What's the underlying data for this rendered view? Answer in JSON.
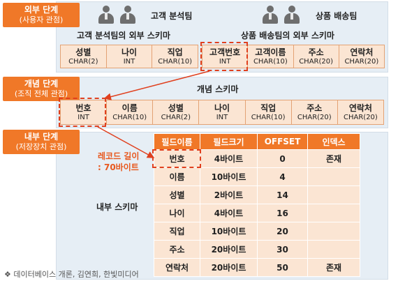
{
  "levels": {
    "external": {
      "title": "외부 단계",
      "subtitle": "(사용자 관점)"
    },
    "conceptual": {
      "title": "개념 단계",
      "subtitle": "(조직 전체 관점)"
    },
    "internal": {
      "title": "내부 단계",
      "subtitle": "(저장장치 관점)"
    }
  },
  "external": {
    "team_a": {
      "name": "고객 분석팀",
      "schema_label": "고객 분석팀의 외부 스키마"
    },
    "team_b": {
      "name": "상품 배송팀",
      "schema_label": "상품 배송팀의 외부 스키마"
    },
    "schema_a": [
      {
        "name": "성별",
        "type": "CHAR(2)"
      },
      {
        "name": "나이",
        "type": "INT"
      },
      {
        "name": "직업",
        "type": "CHAR(10)"
      }
    ],
    "schema_b": [
      {
        "name": "고객번호",
        "type": "INT"
      },
      {
        "name": "고객이름",
        "type": "CHAR(10)"
      },
      {
        "name": "주소",
        "type": "CHAR(20)"
      },
      {
        "name": "연락처",
        "type": "CHAR(20)"
      }
    ]
  },
  "conceptual": {
    "schema_label": "개념 스키마",
    "fields": [
      {
        "name": "번호",
        "type": "INT"
      },
      {
        "name": "이름",
        "type": "CHAR(10)"
      },
      {
        "name": "성별",
        "type": "CHAR(2)"
      },
      {
        "name": "나이",
        "type": "INT"
      },
      {
        "name": "직업",
        "type": "CHAR(10)"
      },
      {
        "name": "주소",
        "type": "CHAR(20)"
      },
      {
        "name": "연락처",
        "type": "CHAR(20)"
      }
    ]
  },
  "internal": {
    "schema_label": "내부 스키마",
    "record_note": {
      "line1": "레코드 길이",
      "line2": ": 70바이트"
    },
    "headers": [
      "필드이름",
      "필드크기",
      "OFFSET",
      "인덱스"
    ],
    "rows": [
      [
        "번호",
        "4바이트",
        "0",
        "존재"
      ],
      [
        "이름",
        "10바이트",
        "4",
        ""
      ],
      [
        "성별",
        "2바이트",
        "14",
        ""
      ],
      [
        "나이",
        "4바이트",
        "16",
        ""
      ],
      [
        "직업",
        "10바이트",
        "20",
        ""
      ],
      [
        "주소",
        "20바이트",
        "30",
        ""
      ],
      [
        "연락처",
        "20바이트",
        "50",
        "존재"
      ]
    ]
  },
  "footnote": "❖ 데이터베이스 개론, 김연희, 한빛미디어",
  "colors": {
    "accent": "#f07828",
    "dashed": "#e0401e",
    "band": "#e6eef5",
    "cell": "#fbe5d3"
  }
}
